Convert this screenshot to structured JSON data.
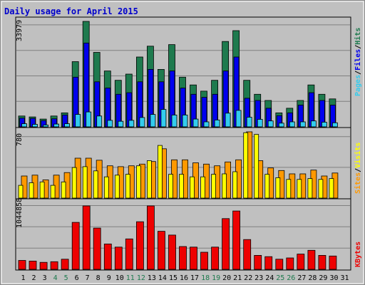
{
  "title": "Daily usage for April 2015",
  "colors": {
    "background": "#c0c0c0",
    "title": "#0000cc",
    "hits": "#1e7a4e",
    "files": "#0000ee",
    "pages": "#33ccee",
    "visits": "#ffff00",
    "sites": "#ff9900",
    "kbytes": "#ee0000",
    "weekend_day": "#1e7a4e",
    "weekday": "#000000"
  },
  "chart_data": [
    {
      "type": "bar",
      "panel": "hits-files-pages",
      "ymax_label": "33979",
      "ylim": [
        0,
        33979
      ],
      "legend": [
        "Pages",
        "/",
        "Files",
        "/",
        "Hits"
      ],
      "legend_position": "right",
      "series": [
        {
          "name": "Hits",
          "values": [
            3500,
            3200,
            2500,
            3500,
            4500,
            21000,
            33979,
            24000,
            18000,
            15000,
            17000,
            22500,
            26000,
            18500,
            26500,
            16000,
            13500,
            11500,
            15000,
            27500,
            31000,
            15000,
            10500,
            8500,
            4500,
            6000,
            8500,
            13500,
            10500,
            9000
          ]
        },
        {
          "name": "Files",
          "values": [
            2800,
            2700,
            2000,
            2600,
            3800,
            16000,
            27000,
            14500,
            12500,
            10500,
            11000,
            14500,
            18500,
            14500,
            18000,
            12500,
            10500,
            9500,
            10500,
            18000,
            22500,
            9200,
            8500,
            6000,
            3600,
            4500,
            7000,
            11000,
            8500,
            7000
          ]
        },
        {
          "name": "Pages",
          "values": [
            1000,
            800,
            600,
            900,
            1000,
            4000,
            4800,
            3500,
            2100,
            1800,
            2100,
            3000,
            4000,
            5600,
            3800,
            3800,
            2500,
            1600,
            2200,
            4400,
            5300,
            3100,
            2400,
            1900,
            1200,
            1600,
            1600,
            1900,
            1500,
            1300
          ]
        }
      ]
    },
    {
      "type": "bar",
      "panel": "visits-sites",
      "ymax_label": "780",
      "ylim": [
        0,
        780
      ],
      "legend": [
        "Sites",
        "/",
        "Visits"
      ],
      "legend_position": "right",
      "series": [
        {
          "name": "Sites",
          "values": [
            260,
            270,
            215,
            270,
            300,
            470,
            470,
            445,
            380,
            370,
            380,
            400,
            430,
            580,
            450,
            450,
            415,
            400,
            380,
            425,
            450,
            780,
            440,
            355,
            325,
            285,
            285,
            330,
            260,
            295
          ]
        },
        {
          "name": "Visits",
          "values": [
            150,
            180,
            190,
            150,
            190,
            360,
            370,
            320,
            250,
            270,
            280,
            380,
            440,
            620,
            280,
            280,
            250,
            250,
            280,
            285,
            310,
            770,
            750,
            280,
            240,
            220,
            220,
            230,
            220,
            230
          ]
        }
      ]
    },
    {
      "type": "bar",
      "panel": "kbytes",
      "ymax_label": "1044858",
      "ylim": [
        0,
        1044858
      ],
      "legend": [
        "KBytes"
      ],
      "legend_position": "right",
      "series": [
        {
          "name": "KBytes",
          "values": [
            140000,
            130000,
            110000,
            120000,
            160000,
            740000,
            1000000,
            650000,
            400000,
            350000,
            480000,
            750000,
            1000000,
            600000,
            540000,
            360000,
            350000,
            270000,
            350000,
            800000,
            920000,
            470000,
            220000,
            200000,
            160000,
            180000,
            240000,
            300000,
            220000,
            210000
          ]
        }
      ]
    }
  ],
  "x_axis": {
    "days": [
      "1",
      "2",
      "3",
      "4",
      "5",
      "6",
      "7",
      "8",
      "9",
      "10",
      "11",
      "12",
      "13",
      "14",
      "15",
      "16",
      "17",
      "18",
      "19",
      "20",
      "21",
      "22",
      "23",
      "24",
      "25",
      "26",
      "27",
      "28",
      "29",
      "30",
      "31"
    ],
    "weekend_days": [
      "4",
      "5",
      "11",
      "12",
      "18",
      "19",
      "25",
      "26"
    ]
  }
}
